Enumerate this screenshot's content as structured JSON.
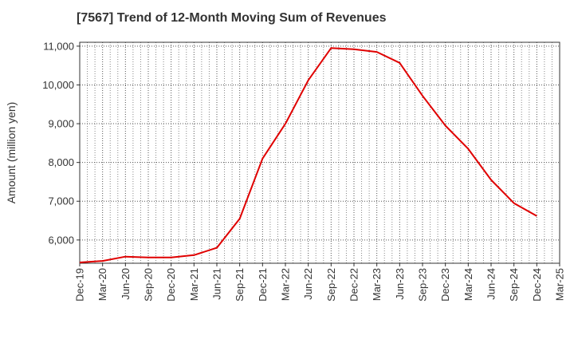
{
  "chart_data": {
    "type": "line",
    "title": "[7567]  Trend of 12-Month Moving Sum of Revenues",
    "xlabel": "",
    "ylabel": "Amount (million yen)",
    "x_ticks": [
      "Dec-19",
      "Mar-20",
      "Jun-20",
      "Sep-20",
      "Dec-20",
      "Mar-21",
      "Jun-21",
      "Sep-21",
      "Dec-21",
      "Mar-22",
      "Jun-22",
      "Sep-22",
      "Dec-22",
      "Mar-23",
      "Jun-23",
      "Sep-23",
      "Dec-23",
      "Mar-24",
      "Jun-24",
      "Sep-24",
      "Dec-24",
      "Mar-25"
    ],
    "y_ticks": [
      6000,
      7000,
      8000,
      9000,
      10000,
      11000
    ],
    "y_tick_labels": [
      "6,000",
      "7,000",
      "8,000",
      "9,000",
      "10,000",
      "11,000"
    ],
    "ylim": [
      5400,
      11100
    ],
    "grid": true,
    "series": [
      {
        "color": "#e00000",
        "values": [
          5420,
          5460,
          5570,
          5550,
          5550,
          5610,
          5800,
          6550,
          8100,
          9000,
          10120,
          10950,
          10920,
          10850,
          10570,
          9720,
          8950,
          8350,
          7550,
          6950,
          6620
        ]
      }
    ]
  }
}
